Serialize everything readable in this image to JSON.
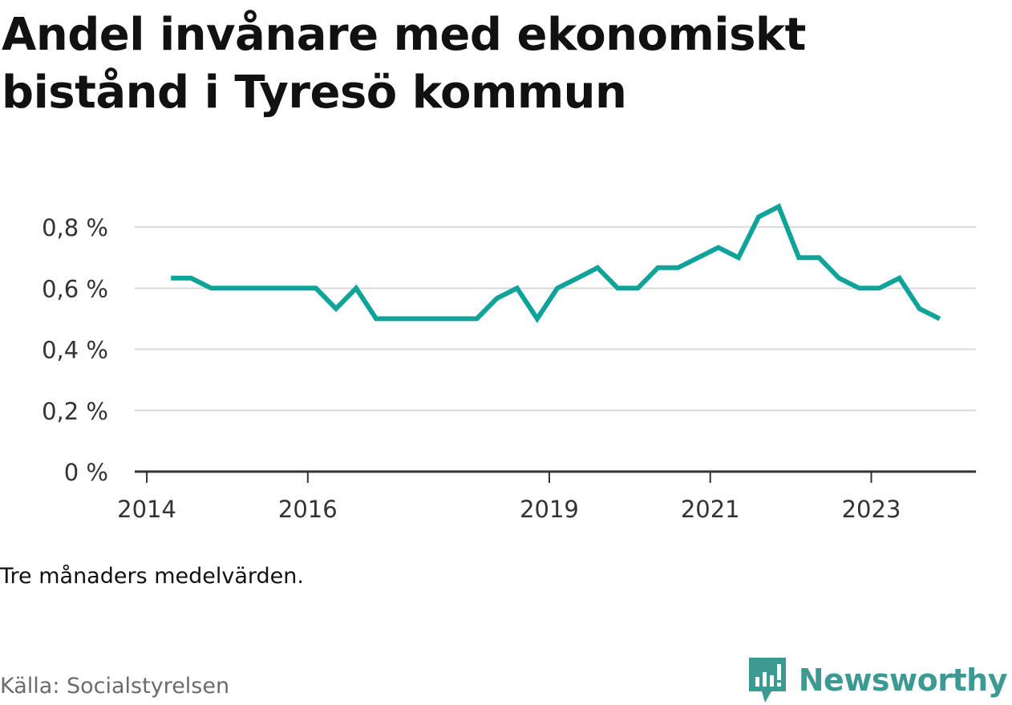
{
  "title": "Andel invånare med ekonomiskt bistånd i Tyresö kommun",
  "note": "Tre månaders medelvärden.",
  "source": "Källa: Socialstyrelsen",
  "brand": {
    "name": "Newsworthy",
    "icon": "newsworthy-logo-icon",
    "color": "#3d9a93"
  },
  "chart_data": {
    "type": "line",
    "title": "Andel invånare med ekonomiskt bistånd i Tyresö kommun",
    "xlabel": "",
    "ylabel": "",
    "ylim": [
      0,
      0.9
    ],
    "yticks": [
      {
        "value": 0,
        "label": "0 %"
      },
      {
        "value": 0.2,
        "label": "0,2 %"
      },
      {
        "value": 0.4,
        "label": "0,4 %"
      },
      {
        "value": 0.6,
        "label": "0,6 %"
      },
      {
        "value": 0.8,
        "label": "0,8 %"
      }
    ],
    "xticks": [
      {
        "value": 2014.0,
        "label": "2014"
      },
      {
        "value": 2016.0,
        "label": "2016"
      },
      {
        "value": 2019.0,
        "label": "2019"
      },
      {
        "value": 2021.0,
        "label": "2021"
      },
      {
        "value": 2023.0,
        "label": "2023"
      }
    ],
    "grid": true,
    "line_color": "#0fa39a",
    "series": [
      {
        "x": [
          2014.3,
          2014.55,
          2014.8,
          2015.05,
          2015.3,
          2015.55,
          2015.8,
          2016.1,
          2016.35,
          2016.6,
          2016.85,
          2017.1,
          2017.35,
          2017.6,
          2017.85,
          2018.1,
          2018.35,
          2018.6,
          2018.85,
          2019.1,
          2019.35,
          2019.6,
          2019.85,
          2020.1,
          2020.35,
          2020.6,
          2020.85,
          2021.1,
          2021.35,
          2021.6,
          2021.85,
          2022.1,
          2022.35,
          2022.6,
          2022.85,
          2023.1,
          2023.35,
          2023.6,
          2023.85
        ],
        "values": [
          0.633,
          0.633,
          0.6,
          0.6,
          0.6,
          0.6,
          0.6,
          0.6,
          0.533,
          0.6,
          0.5,
          0.5,
          0.5,
          0.5,
          0.5,
          0.5,
          0.567,
          0.6,
          0.5,
          0.6,
          0.633,
          0.667,
          0.6,
          0.6,
          0.667,
          0.667,
          0.7,
          0.733,
          0.7,
          0.833,
          0.867,
          0.7,
          0.7,
          0.633,
          0.6,
          0.6,
          0.633,
          0.533,
          0.5
        ]
      }
    ]
  }
}
